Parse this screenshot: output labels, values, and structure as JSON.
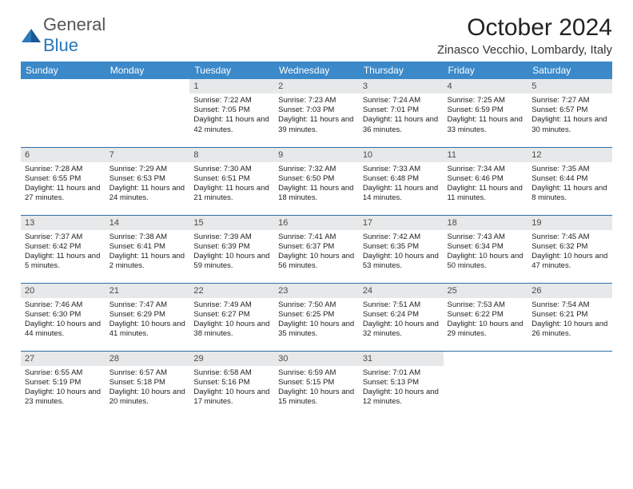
{
  "logo": {
    "word1": "General",
    "word2": "Blue"
  },
  "title": "October 2024",
  "location": "Zinasco Vecchio, Lombardy, Italy",
  "colors": {
    "header_bg": "#3b89c9",
    "header_text": "#ffffff",
    "row_border": "#2d6fa6",
    "daynum_bg": "#e7e8e9",
    "page_bg": "#ffffff",
    "logo_gray": "#555555",
    "logo_blue": "#2876b8"
  },
  "daysOfWeek": [
    "Sunday",
    "Monday",
    "Tuesday",
    "Wednesday",
    "Thursday",
    "Friday",
    "Saturday"
  ],
  "weeks": [
    [
      {
        "empty": true
      },
      {
        "empty": true
      },
      {
        "n": "1",
        "sr": "7:22 AM",
        "ss": "7:05 PM",
        "dl": "11 hours and 42 minutes."
      },
      {
        "n": "2",
        "sr": "7:23 AM",
        "ss": "7:03 PM",
        "dl": "11 hours and 39 minutes."
      },
      {
        "n": "3",
        "sr": "7:24 AM",
        "ss": "7:01 PM",
        "dl": "11 hours and 36 minutes."
      },
      {
        "n": "4",
        "sr": "7:25 AM",
        "ss": "6:59 PM",
        "dl": "11 hours and 33 minutes."
      },
      {
        "n": "5",
        "sr": "7:27 AM",
        "ss": "6:57 PM",
        "dl": "11 hours and 30 minutes."
      }
    ],
    [
      {
        "n": "6",
        "sr": "7:28 AM",
        "ss": "6:55 PM",
        "dl": "11 hours and 27 minutes."
      },
      {
        "n": "7",
        "sr": "7:29 AM",
        "ss": "6:53 PM",
        "dl": "11 hours and 24 minutes."
      },
      {
        "n": "8",
        "sr": "7:30 AM",
        "ss": "6:51 PM",
        "dl": "11 hours and 21 minutes."
      },
      {
        "n": "9",
        "sr": "7:32 AM",
        "ss": "6:50 PM",
        "dl": "11 hours and 18 minutes."
      },
      {
        "n": "10",
        "sr": "7:33 AM",
        "ss": "6:48 PM",
        "dl": "11 hours and 14 minutes."
      },
      {
        "n": "11",
        "sr": "7:34 AM",
        "ss": "6:46 PM",
        "dl": "11 hours and 11 minutes."
      },
      {
        "n": "12",
        "sr": "7:35 AM",
        "ss": "6:44 PM",
        "dl": "11 hours and 8 minutes."
      }
    ],
    [
      {
        "n": "13",
        "sr": "7:37 AM",
        "ss": "6:42 PM",
        "dl": "11 hours and 5 minutes."
      },
      {
        "n": "14",
        "sr": "7:38 AM",
        "ss": "6:41 PM",
        "dl": "11 hours and 2 minutes."
      },
      {
        "n": "15",
        "sr": "7:39 AM",
        "ss": "6:39 PM",
        "dl": "10 hours and 59 minutes."
      },
      {
        "n": "16",
        "sr": "7:41 AM",
        "ss": "6:37 PM",
        "dl": "10 hours and 56 minutes."
      },
      {
        "n": "17",
        "sr": "7:42 AM",
        "ss": "6:35 PM",
        "dl": "10 hours and 53 minutes."
      },
      {
        "n": "18",
        "sr": "7:43 AM",
        "ss": "6:34 PM",
        "dl": "10 hours and 50 minutes."
      },
      {
        "n": "19",
        "sr": "7:45 AM",
        "ss": "6:32 PM",
        "dl": "10 hours and 47 minutes."
      }
    ],
    [
      {
        "n": "20",
        "sr": "7:46 AM",
        "ss": "6:30 PM",
        "dl": "10 hours and 44 minutes."
      },
      {
        "n": "21",
        "sr": "7:47 AM",
        "ss": "6:29 PM",
        "dl": "10 hours and 41 minutes."
      },
      {
        "n": "22",
        "sr": "7:49 AM",
        "ss": "6:27 PM",
        "dl": "10 hours and 38 minutes."
      },
      {
        "n": "23",
        "sr": "7:50 AM",
        "ss": "6:25 PM",
        "dl": "10 hours and 35 minutes."
      },
      {
        "n": "24",
        "sr": "7:51 AM",
        "ss": "6:24 PM",
        "dl": "10 hours and 32 minutes."
      },
      {
        "n": "25",
        "sr": "7:53 AM",
        "ss": "6:22 PM",
        "dl": "10 hours and 29 minutes."
      },
      {
        "n": "26",
        "sr": "7:54 AM",
        "ss": "6:21 PM",
        "dl": "10 hours and 26 minutes."
      }
    ],
    [
      {
        "n": "27",
        "sr": "6:55 AM",
        "ss": "5:19 PM",
        "dl": "10 hours and 23 minutes."
      },
      {
        "n": "28",
        "sr": "6:57 AM",
        "ss": "5:18 PM",
        "dl": "10 hours and 20 minutes."
      },
      {
        "n": "29",
        "sr": "6:58 AM",
        "ss": "5:16 PM",
        "dl": "10 hours and 17 minutes."
      },
      {
        "n": "30",
        "sr": "6:59 AM",
        "ss": "5:15 PM",
        "dl": "10 hours and 15 minutes."
      },
      {
        "n": "31",
        "sr": "7:01 AM",
        "ss": "5:13 PM",
        "dl": "10 hours and 12 minutes."
      },
      {
        "empty": true
      },
      {
        "empty": true
      }
    ]
  ],
  "labels": {
    "sunrise": "Sunrise: ",
    "sunset": "Sunset: ",
    "daylight": "Daylight: "
  }
}
